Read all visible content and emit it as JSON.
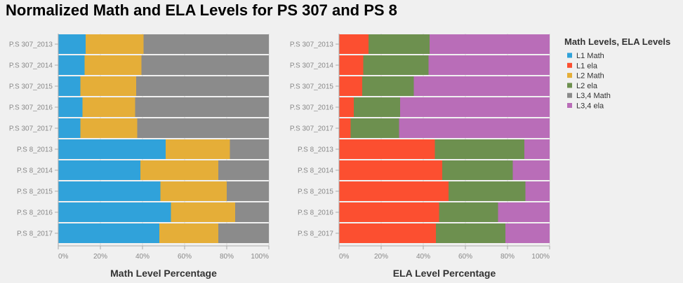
{
  "title": "Normalized Math and ELA Levels for PS 307 and PS 8",
  "legend_title": "Math Levels, ELA Levels",
  "colors": {
    "L1 Math": "#30a2da",
    "L1 ela": "#fc4f30",
    "L2 Math": "#e5ae38",
    "L2 ela": "#6d904f",
    "L3,4 Math": "#8b8b8b",
    "L3,4 ela": "#b96db8"
  },
  "chart_data": [
    {
      "type": "bar",
      "orientation": "horizontal",
      "stacked": "normalized",
      "xlabel": "Math Level Percentage",
      "xlim": [
        0,
        100
      ],
      "xticks": [
        "0%",
        "20%",
        "40%",
        "60%",
        "80%",
        "100%"
      ],
      "categories": [
        "P.S 307_2013",
        "P.S 307_2014",
        "P.S 307_2015",
        "P.S 307_2016",
        "P.S 307_2017",
        "P.S 8_2013",
        "P.S 8_2014",
        "P.S 8_2015",
        "P.S 8_2016",
        "P.S 8_2017"
      ],
      "series": [
        {
          "name": "L1 Math",
          "values": [
            13,
            12.5,
            10.5,
            11.5,
            10.5,
            51,
            39,
            48.5,
            53.5,
            48
          ]
        },
        {
          "name": "L2 Math",
          "values": [
            27.5,
            27,
            26.5,
            25,
            27,
            30.5,
            37,
            31.5,
            30.5,
            28
          ]
        },
        {
          "name": "L3,4 Math",
          "values": [
            59.5,
            60.5,
            63,
            63.5,
            62.5,
            18.5,
            24,
            20,
            16,
            24
          ]
        }
      ]
    },
    {
      "type": "bar",
      "orientation": "horizontal",
      "stacked": "normalized",
      "xlabel": "ELA Level Percentage",
      "xlim": [
        0,
        100
      ],
      "xticks": [
        "0%",
        "20%",
        "40%",
        "60%",
        "80%",
        "100%"
      ],
      "categories": [
        "P.S 307_2013",
        "P.S 307_2014",
        "P.S 307_2015",
        "P.S 307_2016",
        "P.S 307_2017",
        "P.S 8_2013",
        "P.S 8_2014",
        "P.S 8_2015",
        "P.S 8_2016",
        "P.S 8_2017"
      ],
      "series": [
        {
          "name": "L1 ela",
          "values": [
            14,
            11.5,
            11,
            7,
            5.5,
            45.5,
            49,
            52,
            47.5,
            46
          ]
        },
        {
          "name": "L2 ela",
          "values": [
            29,
            31,
            24.5,
            22,
            23,
            42.5,
            33.5,
            36.5,
            28,
            33
          ]
        },
        {
          "name": "L3,4 ela",
          "values": [
            57,
            57.5,
            64.5,
            71,
            71.5,
            12,
            17.5,
            11.5,
            24.5,
            21
          ]
        }
      ]
    }
  ]
}
